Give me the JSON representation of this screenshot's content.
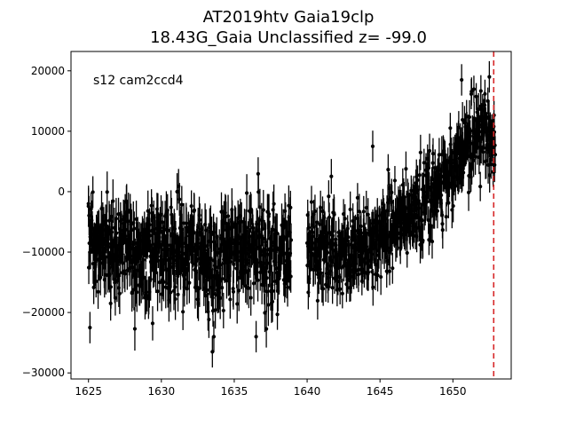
{
  "chart_data": {
    "type": "scatter",
    "title_line1": "AT2019htv  Gaia19clp",
    "title_line2": "18.43G_Gaia Unclassified z= -99.0",
    "annotation": "s12 cam2ccd4",
    "xlabel": "",
    "ylabel": "",
    "xlim": [
      1623.8,
      1654.0
    ],
    "ylim": [
      -31000,
      23200
    ],
    "x_ticks": [
      1625,
      1630,
      1635,
      1640,
      1645,
      1650
    ],
    "y_ticks": [
      -30000,
      -20000,
      -10000,
      0,
      10000,
      20000
    ],
    "grid": false,
    "marker_color": "#000000",
    "errorbar": true,
    "vline": {
      "x": 1652.8,
      "color": "#d62728",
      "style": "dashed"
    },
    "segments": [
      {
        "x_start": 1625.0,
        "x_end": 1638.9,
        "trend": [
          [
            1625.0,
            -8000
          ],
          [
            1626.0,
            -9000
          ],
          [
            1627.0,
            -9500
          ],
          [
            1628.0,
            -10000
          ],
          [
            1629.0,
            -10500
          ],
          [
            1630.0,
            -9500
          ],
          [
            1631.0,
            -9000
          ],
          [
            1632.0,
            -10000
          ],
          [
            1633.0,
            -11000
          ],
          [
            1634.0,
            -12500
          ],
          [
            1635.0,
            -10500
          ],
          [
            1636.0,
            -9500
          ],
          [
            1637.0,
            -10500
          ],
          [
            1638.0,
            -11000
          ],
          [
            1638.9,
            -9000
          ]
        ],
        "scatter": 4200,
        "error": 3000
      },
      {
        "x_start": 1640.0,
        "x_end": 1652.9,
        "trend": [
          [
            1640.0,
            -8500
          ],
          [
            1641.0,
            -10000
          ],
          [
            1642.0,
            -9500
          ],
          [
            1643.0,
            -10500
          ],
          [
            1644.0,
            -9000
          ],
          [
            1645.0,
            -8000
          ],
          [
            1646.0,
            -6000
          ],
          [
            1647.0,
            -4500
          ],
          [
            1648.0,
            -2500
          ],
          [
            1649.0,
            500
          ],
          [
            1650.0,
            4000
          ],
          [
            1651.0,
            7500
          ],
          [
            1652.0,
            10000
          ],
          [
            1652.9,
            9000
          ]
        ],
        "scatter": 3300,
        "error": 2600
      }
    ],
    "notable_points": [
      [
        1625.1,
        -22500
      ],
      [
        1633.5,
        -26500
      ],
      [
        1633.6,
        -24000
      ],
      [
        1636.5,
        -24000
      ],
      [
        1644.5,
        7500
      ],
      [
        1650.6,
        18500
      ],
      [
        1652.5,
        19000
      ],
      [
        1625.0,
        -2000
      ]
    ]
  }
}
